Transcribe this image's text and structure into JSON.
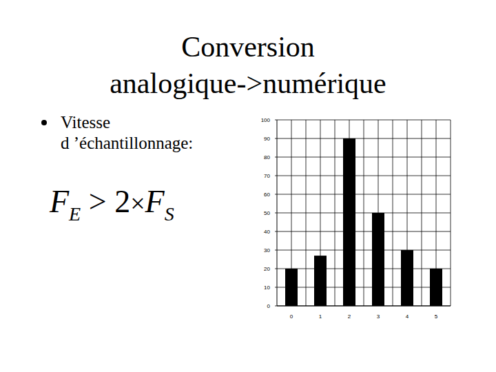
{
  "slide": {
    "title_lines": [
      "Conversion",
      "analogique->numérique"
    ],
    "bullet_lines": [
      "Vitesse",
      "d ’échantillonnage:"
    ],
    "formula": {
      "lhs": "F",
      "lhs_sub": "E",
      "op": ">",
      "factor": "2",
      "times": "×",
      "rhs": "F",
      "rhs_sub": "S"
    }
  },
  "chart_data": {
    "type": "bar",
    "categories": [
      "0",
      "1",
      "2",
      "3",
      "4",
      "5"
    ],
    "values": [
      20,
      27,
      90,
      50,
      30,
      20
    ],
    "color": "#000000",
    "ylim": [
      0,
      100
    ],
    "yticks": [
      0,
      10,
      20,
      30,
      40,
      50,
      60,
      70,
      80,
      90,
      100
    ],
    "grid": true
  }
}
